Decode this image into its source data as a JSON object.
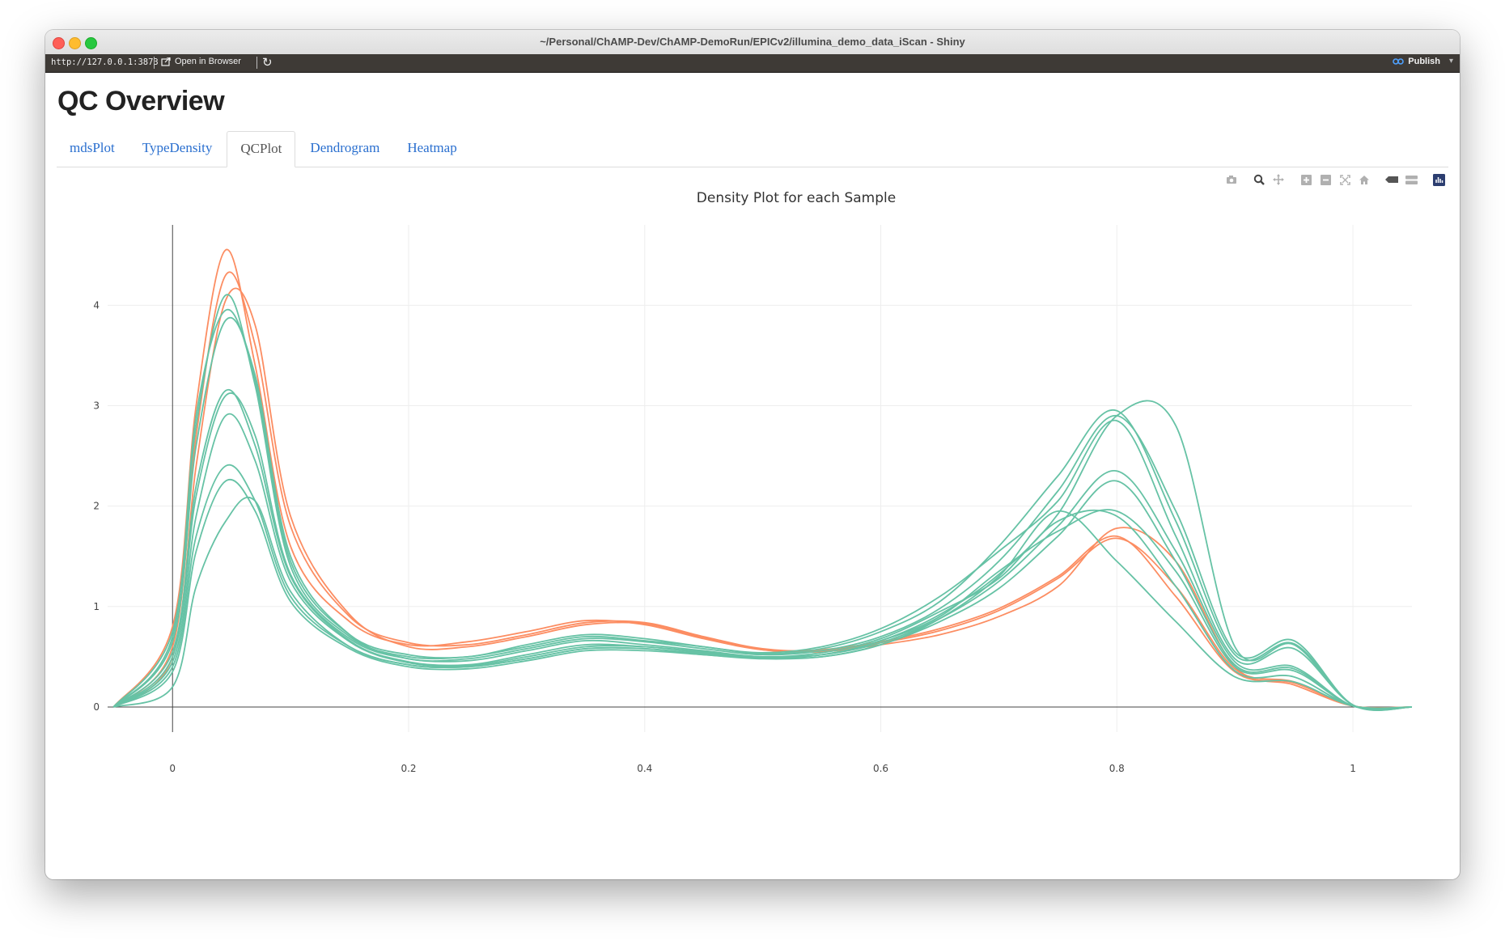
{
  "window": {
    "title": "~/Personal/ChAMP-Dev/ChAMP-DemoRun/EPICv2/illumina_demo_data_iScan - Shiny"
  },
  "toolbar": {
    "url": "http://127.0.0.1:3873",
    "open_browser_label": "Open in Browser",
    "publish_label": "Publish"
  },
  "page": {
    "title": "QC Overview"
  },
  "tabs": [
    {
      "label": "mdsPlot",
      "active": false
    },
    {
      "label": "TypeDensity",
      "active": false
    },
    {
      "label": "QCPlot",
      "active": true
    },
    {
      "label": "Dendrogram",
      "active": false
    },
    {
      "label": "Heatmap",
      "active": false
    }
  ],
  "modebar": {
    "icons": [
      "camera-icon",
      "zoom-icon",
      "pan-icon",
      "zoom-in-icon",
      "zoom-out-icon",
      "autoscale-icon",
      "reset-axes-icon",
      "hover-closest-icon",
      "hover-compare-icon",
      "plotly-logo-icon"
    ]
  },
  "colors": {
    "series_green": "#66c2a5",
    "series_orange": "#fc8d62",
    "tab_link": "#2a6fcf"
  },
  "chart_data": {
    "type": "line",
    "title": "Density Plot for each Sample",
    "xlabel": "",
    "ylabel": "",
    "xlim": [
      -0.055,
      1.05
    ],
    "ylim": [
      -0.25,
      4.8
    ],
    "xticks": [
      0,
      0.2,
      0.4,
      0.6,
      0.8,
      1
    ],
    "xtick_labels": [
      "0",
      "0.2",
      "0.4",
      "0.6",
      "0.8",
      "1"
    ],
    "yticks": [
      0,
      1,
      2,
      3,
      4
    ],
    "ytick_labels": [
      "0",
      "1",
      "2",
      "3",
      "4"
    ],
    "grid": true,
    "legend": "none",
    "x": [
      -0.05,
      0.0,
      0.02,
      0.045,
      0.07,
      0.1,
      0.15,
      0.2,
      0.25,
      0.3,
      0.35,
      0.4,
      0.45,
      0.5,
      0.55,
      0.6,
      0.65,
      0.7,
      0.75,
      0.8,
      0.85,
      0.9,
      0.95,
      1.0,
      1.05
    ],
    "series": [
      {
        "color": "#fc8d62",
        "values": [
          0,
          0.8,
          3.0,
          4.55,
          3.4,
          1.6,
          0.85,
          0.62,
          0.65,
          0.75,
          0.86,
          0.82,
          0.68,
          0.57,
          0.57,
          0.65,
          0.78,
          0.98,
          1.3,
          1.7,
          1.1,
          0.35,
          0.24,
          0.01,
          0
        ]
      },
      {
        "color": "#fc8d62",
        "values": [
          0,
          0.6,
          2.7,
          4.3,
          3.6,
          1.8,
          0.9,
          0.64,
          0.62,
          0.72,
          0.84,
          0.84,
          0.7,
          0.58,
          0.56,
          0.64,
          0.76,
          0.96,
          1.28,
          1.68,
          1.2,
          0.38,
          0.25,
          0.01,
          0
        ]
      },
      {
        "color": "#fc8d62",
        "values": [
          0,
          0.5,
          2.4,
          4.05,
          3.8,
          1.9,
          0.92,
          0.6,
          0.6,
          0.7,
          0.82,
          0.83,
          0.69,
          0.57,
          0.55,
          0.62,
          0.72,
          0.9,
          1.2,
          1.78,
          1.45,
          0.4,
          0.22,
          0.01,
          0
        ]
      },
      {
        "color": "#66c2a5",
        "values": [
          0,
          0.75,
          2.8,
          4.1,
          3.2,
          1.4,
          0.7,
          0.5,
          0.5,
          0.6,
          0.7,
          0.66,
          0.6,
          0.53,
          0.58,
          0.75,
          1.05,
          1.6,
          2.3,
          2.95,
          1.85,
          0.52,
          0.63,
          0.02,
          0
        ]
      },
      {
        "color": "#66c2a5",
        "values": [
          0,
          0.65,
          2.6,
          3.85,
          3.3,
          1.5,
          0.72,
          0.48,
          0.48,
          0.58,
          0.68,
          0.65,
          0.58,
          0.52,
          0.56,
          0.7,
          0.98,
          1.45,
          2.15,
          2.9,
          1.95,
          0.55,
          0.66,
          0.02,
          0
        ]
      },
      {
        "color": "#66c2a5",
        "values": [
          0,
          0.55,
          2.2,
          3.15,
          2.6,
          1.3,
          0.66,
          0.45,
          0.42,
          0.52,
          0.62,
          0.6,
          0.55,
          0.5,
          0.52,
          0.66,
          0.92,
          1.32,
          1.92,
          2.9,
          2.8,
          0.6,
          0.62,
          0.02,
          0
        ]
      },
      {
        "color": "#66c2a5",
        "values": [
          0,
          0.45,
          1.9,
          2.9,
          2.45,
          1.25,
          0.65,
          0.44,
          0.41,
          0.5,
          0.6,
          0.6,
          0.54,
          0.5,
          0.52,
          0.64,
          0.88,
          1.25,
          1.8,
          2.35,
          1.55,
          0.45,
          0.4,
          0.01,
          0
        ]
      },
      {
        "color": "#66c2a5",
        "values": [
          0,
          0.4,
          1.7,
          2.4,
          2.05,
          1.1,
          0.6,
          0.42,
          0.4,
          0.48,
          0.58,
          0.58,
          0.52,
          0.49,
          0.5,
          0.62,
          0.85,
          1.18,
          1.7,
          2.25,
          1.45,
          0.42,
          0.38,
          0.01,
          0
        ]
      },
      {
        "color": "#66c2a5",
        "values": [
          0,
          0.35,
          1.55,
          2.25,
          1.95,
          1.05,
          0.58,
          0.4,
          0.38,
          0.46,
          0.56,
          0.56,
          0.52,
          0.48,
          0.5,
          0.62,
          0.88,
          1.3,
          1.95,
          1.45,
          0.85,
          0.3,
          0.25,
          0.01,
          0
        ]
      },
      {
        "color": "#66c2a5",
        "values": [
          0,
          0.2,
          1.2,
          1.85,
          2.05,
          1.15,
          0.6,
          0.42,
          0.4,
          0.48,
          0.58,
          0.58,
          0.53,
          0.49,
          0.52,
          0.66,
          0.9,
          1.35,
          1.75,
          1.95,
          1.35,
          0.4,
          0.36,
          0.01,
          0
        ]
      },
      {
        "color": "#66c2a5",
        "values": [
          0,
          0.7,
          2.9,
          3.95,
          3.25,
          1.45,
          0.72,
          0.52,
          0.5,
          0.62,
          0.72,
          0.68,
          0.6,
          0.54,
          0.6,
          0.78,
          1.1,
          1.55,
          2.05,
          2.85,
          1.7,
          0.48,
          0.58,
          0.02,
          0
        ]
      },
      {
        "color": "#66c2a5",
        "values": [
          0,
          0.5,
          2.1,
          3.1,
          2.7,
          1.32,
          0.68,
          0.48,
          0.46,
          0.56,
          0.66,
          0.62,
          0.56,
          0.5,
          0.54,
          0.68,
          0.95,
          1.28,
          1.85,
          1.9,
          1.2,
          0.36,
          0.3,
          0.01,
          0
        ]
      }
    ]
  }
}
